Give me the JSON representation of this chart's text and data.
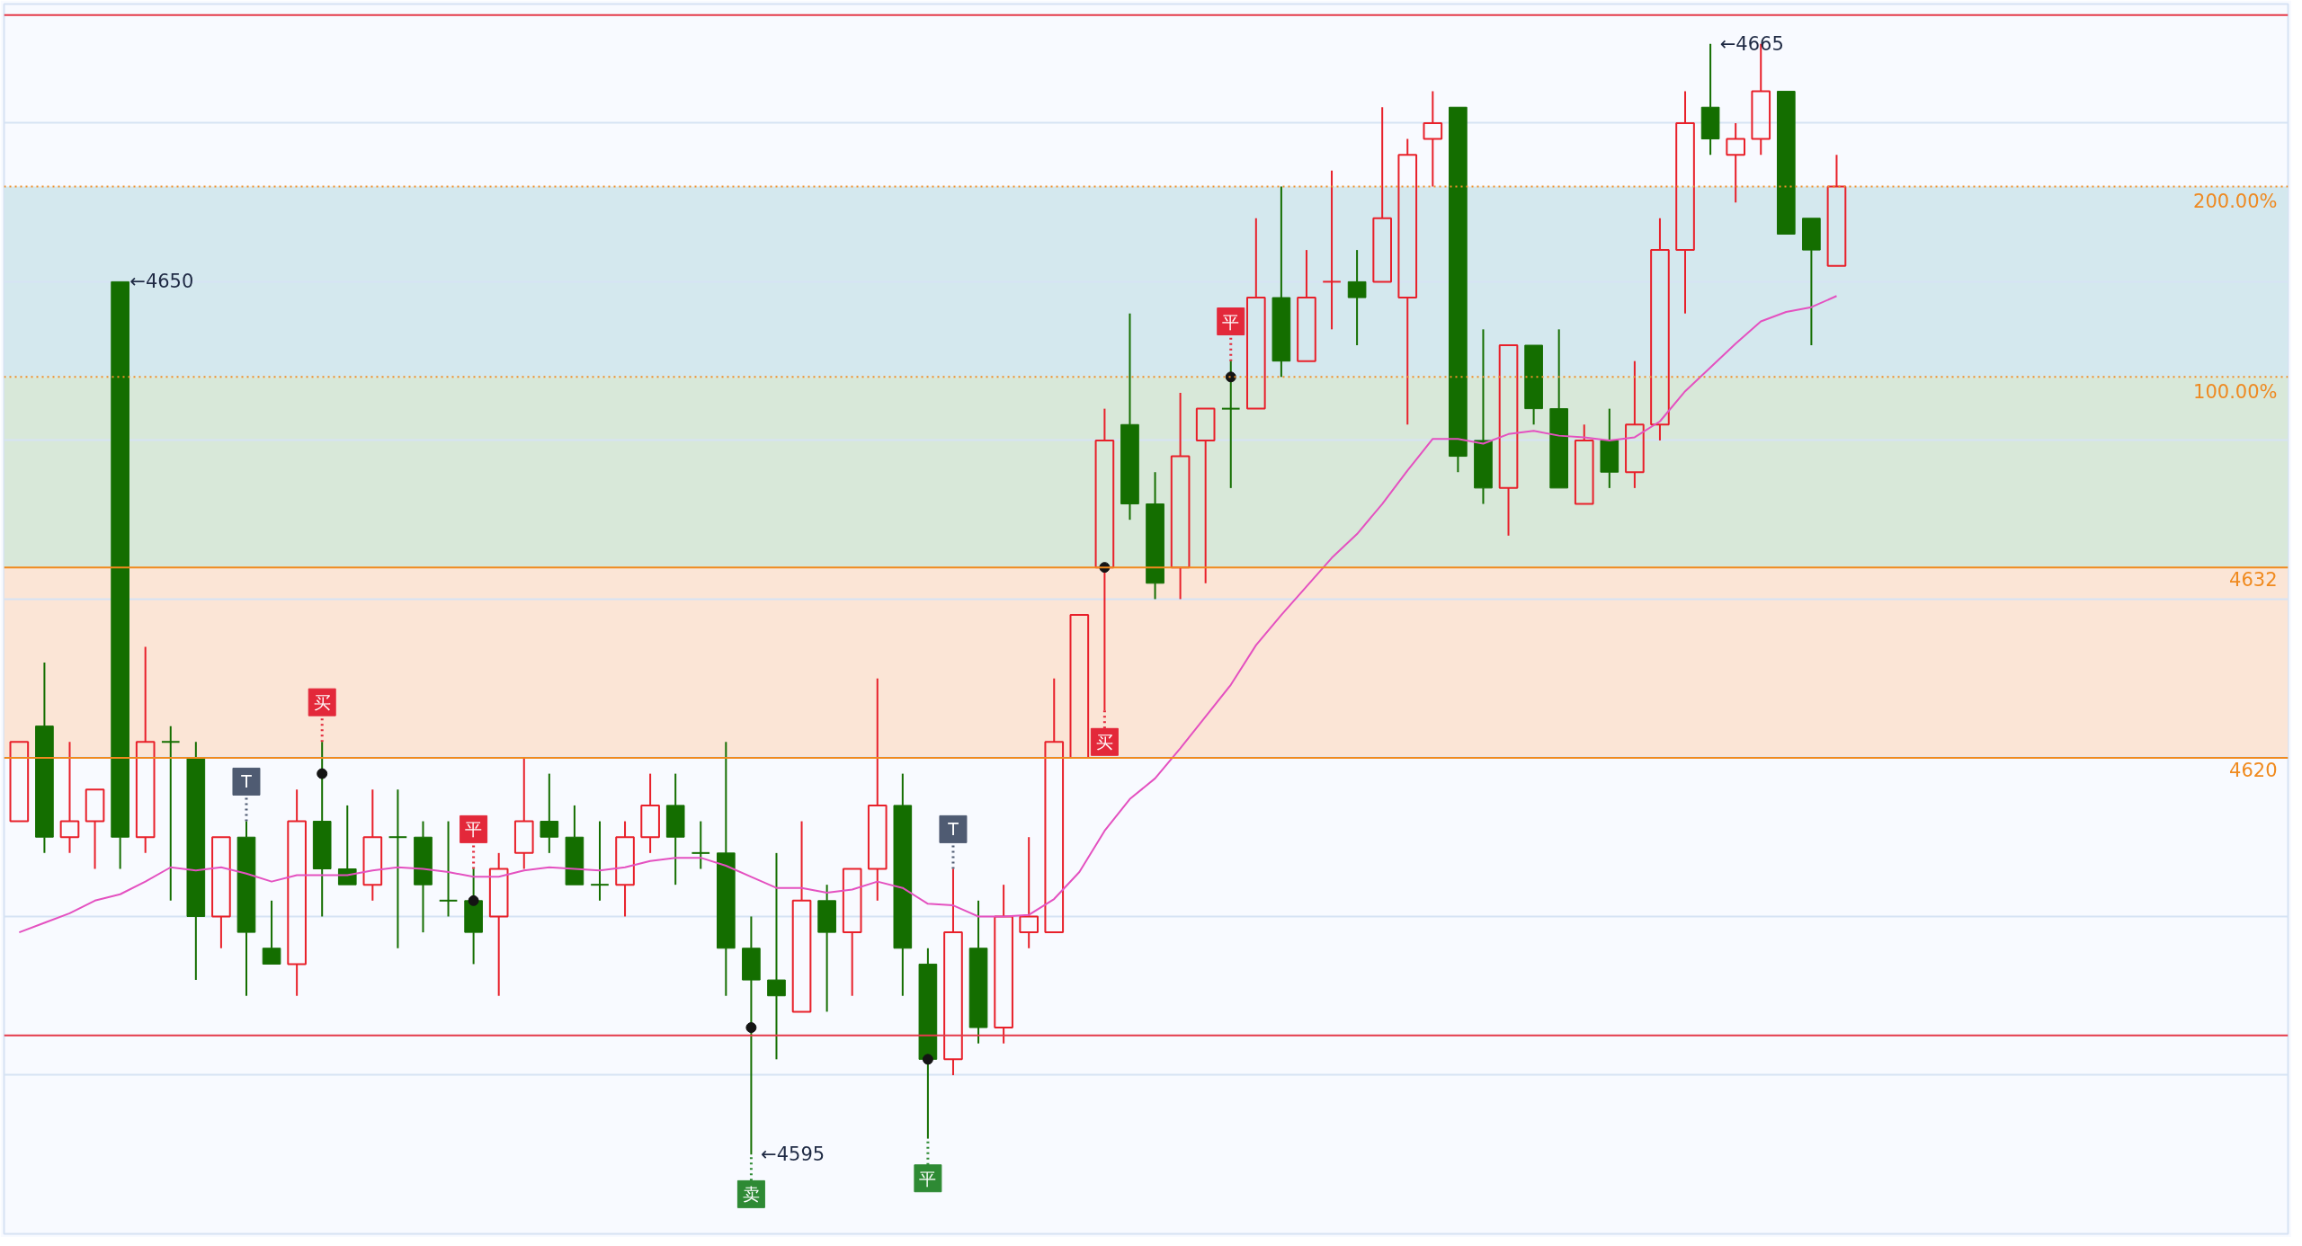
{
  "chart_data": {
    "type": "candlestick",
    "categories": [
      null,
      null,
      null,
      null,
      null,
      null,
      null,
      null,
      null,
      null,
      null,
      null,
      null,
      null,
      null,
      null,
      null,
      null,
      null,
      null,
      null,
      null,
      null,
      null,
      null,
      null,
      null,
      null,
      null,
      null,
      null,
      null,
      null,
      null,
      null,
      null,
      null,
      null,
      null,
      null,
      null,
      null,
      null,
      null,
      null,
      null,
      null,
      null,
      null,
      null,
      null,
      null,
      null,
      null,
      null,
      null,
      null,
      null,
      null,
      null,
      null,
      null,
      null,
      null,
      null,
      null,
      null,
      null,
      null,
      null,
      null,
      null,
      null
    ],
    "ohlc": [
      [
        4616,
        4621,
        4616,
        4621
      ],
      [
        4622,
        4626,
        4614,
        4615
      ],
      [
        4615,
        4621,
        4614,
        4616
      ],
      [
        4616,
        4618,
        4613,
        4618
      ],
      [
        4650,
        4650,
        4613,
        4615
      ],
      [
        4615,
        4627,
        4614,
        4621
      ],
      [
        4621,
        4622,
        4611,
        4621
      ],
      [
        4620,
        4621,
        4606,
        4610
      ],
      [
        4610,
        4615,
        4608,
        4615
      ],
      [
        4615,
        4616,
        4605,
        4609
      ],
      [
        4608,
        4611,
        4607,
        4607
      ],
      [
        4607,
        4618,
        4605,
        4616
      ],
      [
        4616,
        4621,
        4610,
        4613
      ],
      [
        4613,
        4617,
        4612,
        4612
      ],
      [
        4612,
        4618,
        4611,
        4615
      ],
      [
        4615,
        4618,
        4608,
        4615
      ],
      [
        4615,
        4616,
        4609,
        4612
      ],
      [
        4611,
        4616,
        4610,
        4611
      ],
      [
        4611,
        4613,
        4607,
        4609
      ],
      [
        4610,
        4614,
        4605,
        4613
      ],
      [
        4614,
        4620,
        4613,
        4616
      ],
      [
        4616,
        4619,
        4614,
        4615
      ],
      [
        4615,
        4617,
        4612,
        4612
      ],
      [
        4612,
        4616,
        4611,
        4612
      ],
      [
        4612,
        4616,
        4610,
        4615
      ],
      [
        4615,
        4619,
        4614,
        4617
      ],
      [
        4617,
        4619,
        4612,
        4615
      ],
      [
        4614,
        4616,
        4613,
        4614
      ],
      [
        4614,
        4621,
        4605,
        4608
      ],
      [
        4608,
        4610,
        4595,
        4606
      ],
      [
        4606,
        4614,
        4601,
        4605
      ],
      [
        4604,
        4616,
        4604,
        4611
      ],
      [
        4611,
        4612,
        4604,
        4609
      ],
      [
        4609,
        4613,
        4605,
        4613
      ],
      [
        4613,
        4625,
        4611,
        4617
      ],
      [
        4617,
        4619,
        4605,
        4608
      ],
      [
        4607,
        4608,
        4596,
        4601
      ],
      [
        4601,
        4613,
        4600,
        4609
      ],
      [
        4608,
        4611,
        4602,
        4603
      ],
      [
        4603,
        4612,
        4602,
        4610
      ],
      [
        4609,
        4615,
        4608,
        4610
      ],
      [
        4609,
        4625,
        4609,
        4621
      ],
      [
        4620,
        4629,
        4620,
        4629
      ],
      [
        4632,
        4642,
        4623,
        4640
      ],
      [
        4641,
        4648,
        4635,
        4636
      ],
      [
        4636,
        4638,
        4630,
        4631
      ],
      [
        4632,
        4643,
        4630,
        4639
      ],
      [
        4640,
        4642,
        4631,
        4642
      ],
      [
        4642,
        4645,
        4637,
        4642
      ],
      [
        4642,
        4654,
        4642,
        4649
      ],
      [
        4649,
        4656,
        4644,
        4645
      ],
      [
        4645,
        4652,
        4645,
        4649
      ],
      [
        4650,
        4657,
        4647,
        4650
      ],
      [
        4650,
        4652,
        4646,
        4649
      ],
      [
        4650,
        4661,
        4650,
        4654
      ],
      [
        4649,
        4659,
        4641,
        4658
      ],
      [
        4659,
        4662,
        4656,
        4660
      ],
      [
        4661,
        4661,
        4638,
        4639
      ],
      [
        4640,
        4647,
        4636,
        4637
      ],
      [
        4637,
        4646,
        4634,
        4646
      ],
      [
        4646,
        4646,
        4641,
        4642
      ],
      [
        4642,
        4647,
        4637,
        4637
      ],
      [
        4636,
        4641,
        4636,
        4640
      ],
      [
        4640,
        4642,
        4637,
        4638
      ],
      [
        4638,
        4645,
        4637,
        4641
      ],
      [
        4641,
        4654,
        4640,
        4652
      ],
      [
        4652,
        4662,
        4648,
        4660
      ],
      [
        4661,
        4665,
        4658,
        4659
      ],
      [
        4658,
        4660,
        4655,
        4659
      ],
      [
        4659,
        4665,
        4658,
        4662
      ],
      [
        4662,
        4662,
        4653,
        4653
      ],
      [
        4654,
        4654,
        4646,
        4652
      ],
      [
        4651,
        4658,
        4651,
        4656
      ]
    ],
    "colors": [
      "#e8202a",
      "#146e00",
      "#e8202a",
      "#e8202a",
      "#146e00",
      "#e8202a",
      "#146e00",
      "#146e00",
      "#e8202a",
      "#146e00",
      "#146e00",
      "#e8202a",
      "#146e00",
      "#146e00",
      "#e8202a",
      "#146e00",
      "#146e00",
      "#146e00",
      "#146e00",
      "#e8202a",
      "#e8202a",
      "#146e00",
      "#146e00",
      "#146e00",
      "#e8202a",
      "#e8202a",
      "#146e00",
      "#146e00",
      "#146e00",
      "#146e00",
      "#146e00",
      "#e8202a",
      "#146e00",
      "#e8202a",
      "#e8202a",
      "#146e00",
      "#146e00",
      "#e8202a",
      "#146e00",
      "#e8202a",
      "#e8202a",
      "#e8202a",
      "#e8202a",
      "#e8202a",
      "#146e00",
      "#146e00",
      "#e8202a",
      "#e8202a",
      "#146e00",
      "#e8202a",
      "#146e00",
      "#e8202a",
      "#e8202a",
      "#146e00",
      "#e8202a",
      "#e8202a",
      "#e8202a",
      "#146e00",
      "#146e00",
      "#e8202a",
      "#146e00",
      "#146e00",
      "#e8202a",
      "#146e00",
      "#e8202a",
      "#e8202a",
      "#e8202a",
      "#146e00",
      "#e8202a",
      "#e8202a",
      "#146e00",
      "#146e00",
      "#e8202a"
    ],
    "value_labels": [
      null,
      null,
      null,
      null,
      "←4650",
      null,
      null,
      null,
      null,
      null,
      null,
      null,
      null,
      null,
      null,
      null,
      null,
      null,
      null,
      null,
      null,
      null,
      null,
      null,
      null,
      null,
      null,
      null,
      null,
      "←4595",
      null,
      null,
      null,
      null,
      null,
      null,
      null,
      null,
      null,
      null,
      null,
      null,
      null,
      null,
      null,
      null,
      null,
      null,
      null,
      null,
      null,
      null,
      null,
      null,
      null,
      null,
      null,
      null,
      null,
      null,
      null,
      null,
      null,
      null,
      null,
      null,
      null,
      "←4665",
      null,
      null,
      null,
      null,
      null
    ],
    "ylim": [
      4590,
      4667.5
    ],
    "yticks": [
      {
        "value": 4600,
        "label": null
      },
      {
        "value": 4610,
        "label": null
      },
      {
        "value": 4620,
        "label": null
      },
      {
        "value": 4630,
        "label": null
      },
      {
        "value": 4640,
        "label": null
      },
      {
        "value": 4650,
        "label": null
      },
      {
        "value": 4660,
        "label": null
      }
    ],
    "grid": "y",
    "tick_labels": false,
    "series": [
      {
        "type": "line",
        "color": "#e451c0",
        "values": [
          4609.0,
          4609.6,
          4610.2,
          4611.0,
          4611.4,
          4612.2,
          4613.1,
          4612.9,
          4613.1,
          4612.7,
          4612.2,
          4612.6,
          4612.6,
          4612.6,
          4612.9,
          4613.1,
          4613.0,
          4612.8,
          4612.5,
          4612.5,
          4612.9,
          4613.1,
          4613.0,
          4612.9,
          4613.1,
          4613.5,
          4613.7,
          4613.7,
          4613.2,
          4612.5,
          4611.8,
          4611.8,
          4611.5,
          4611.7,
          4612.2,
          4611.8,
          4610.8,
          4610.7,
          4610.0,
          4610.0,
          4610.1,
          4611.1,
          4612.8,
          4615.4,
          4617.4,
          4618.7,
          4620.6,
          4622.6,
          4624.6,
          4627.1,
          4629.0,
          4630.8,
          4632.6,
          4634.1,
          4636.0,
          4638.1,
          4640.1,
          4640.1,
          4639.8,
          4640.4,
          4640.6,
          4640.3,
          4640.2,
          4640.0,
          4640.2,
          4641.2,
          4643.1,
          4644.6,
          4646.1,
          4647.5,
          4648.1,
          4648.4,
          4649.1
        ]
      },
      {
        "type": "scatter",
        "marker": "circle",
        "color": "#141414",
        "values": [
          null,
          null,
          null,
          null,
          null,
          null,
          null,
          null,
          null,
          null,
          null,
          null,
          4619,
          null,
          null,
          null,
          null,
          null,
          4611,
          null,
          null,
          null,
          null,
          null,
          null,
          null,
          null,
          null,
          null,
          4603,
          null,
          null,
          null,
          null,
          null,
          null,
          4601,
          null,
          null,
          null,
          null,
          null,
          null,
          4632,
          null,
          null,
          null,
          null,
          4644,
          null,
          null,
          null,
          null,
          null,
          null,
          null,
          null,
          null,
          null,
          null,
          null,
          null,
          null,
          null,
          null,
          null,
          null,
          null,
          null,
          null,
          null,
          null,
          null
        ]
      },
      {
        "type": "scatter",
        "marker": "square",
        "color": "#e3283a",
        "values": [
          null,
          null,
          null,
          null,
          null,
          null,
          null,
          null,
          null,
          null,
          null,
          null,
          4623.5,
          null,
          null,
          null,
          null,
          null,
          4615.5,
          null,
          null,
          null,
          null,
          null,
          null,
          null,
          null,
          null,
          null,
          null,
          null,
          null,
          null,
          null,
          null,
          null,
          null,
          null,
          null,
          null,
          null,
          null,
          null,
          4621,
          null,
          null,
          null,
          null,
          4647.5,
          null,
          null,
          null,
          null,
          null,
          null,
          null,
          null,
          null,
          null,
          null,
          null,
          null,
          null,
          null,
          null,
          null,
          null,
          null,
          null,
          null,
          null,
          null,
          null
        ],
        "value_labels": [
          null,
          null,
          null,
          null,
          null,
          null,
          null,
          null,
          null,
          null,
          null,
          null,
          "买",
          null,
          null,
          null,
          null,
          null,
          "平",
          null,
          null,
          null,
          null,
          null,
          null,
          null,
          null,
          null,
          null,
          null,
          null,
          null,
          null,
          null,
          null,
          null,
          null,
          null,
          null,
          null,
          null,
          null,
          null,
          "买",
          null,
          null,
          null,
          null,
          "平",
          null,
          null,
          null,
          null,
          null,
          null,
          null,
          null,
          null,
          null,
          null,
          null,
          null,
          null,
          null,
          null,
          null,
          null,
          null,
          null,
          null,
          null,
          null,
          null
        ]
      },
      {
        "type": "scatter",
        "marker": "square",
        "color": "#2e8a34",
        "values": [
          null,
          null,
          null,
          null,
          null,
          null,
          null,
          null,
          null,
          null,
          null,
          null,
          null,
          null,
          null,
          null,
          null,
          null,
          null,
          null,
          null,
          null,
          null,
          null,
          null,
          null,
          null,
          null,
          null,
          4592.5,
          null,
          null,
          null,
          null,
          null,
          null,
          4593.5,
          null,
          null,
          null,
          null,
          null,
          null,
          null,
          null,
          null,
          null,
          null,
          null,
          null,
          null,
          null,
          null,
          null,
          null,
          null,
          null,
          null,
          null,
          null,
          null,
          null,
          null,
          null,
          null,
          null,
          null,
          null,
          null,
          null,
          null,
          null,
          null
        ],
        "value_labels": [
          null,
          null,
          null,
          null,
          null,
          null,
          null,
          null,
          null,
          null,
          null,
          null,
          null,
          null,
          null,
          null,
          null,
          null,
          null,
          null,
          null,
          null,
          null,
          null,
          null,
          null,
          null,
          null,
          null,
          "卖",
          null,
          null,
          null,
          null,
          null,
          null,
          "平",
          null,
          null,
          null,
          null,
          null,
          null,
          null,
          null,
          null,
          null,
          null,
          null,
          null,
          null,
          null,
          null,
          null,
          null,
          null,
          null,
          null,
          null,
          null,
          null,
          null,
          null,
          null,
          null,
          null,
          null,
          null,
          null,
          null,
          null,
          null,
          null
        ]
      },
      {
        "type": "scatter",
        "marker": "square",
        "color": "#4f5b72",
        "values": [
          null,
          null,
          null,
          null,
          null,
          null,
          null,
          null,
          null,
          4618.5,
          null,
          null,
          null,
          null,
          null,
          null,
          null,
          null,
          null,
          null,
          null,
          null,
          null,
          null,
          null,
          null,
          null,
          null,
          null,
          null,
          null,
          null,
          null,
          null,
          null,
          null,
          null,
          4615.5,
          null,
          null,
          null,
          null,
          null,
          null,
          null,
          null,
          null,
          null,
          null,
          null,
          null,
          null,
          null,
          null,
          null,
          null,
          null,
          null,
          null,
          null,
          null,
          null,
          null,
          null,
          null,
          null,
          null,
          null,
          null,
          null,
          null,
          null,
          null
        ],
        "value_labels": [
          null,
          null,
          null,
          null,
          null,
          null,
          null,
          null,
          null,
          "T",
          null,
          null,
          null,
          null,
          null,
          null,
          null,
          null,
          null,
          null,
          null,
          null,
          null,
          null,
          null,
          null,
          null,
          null,
          null,
          null,
          null,
          null,
          null,
          null,
          null,
          null,
          null,
          "T",
          null,
          null,
          null,
          null,
          null,
          null,
          null,
          null,
          null,
          null,
          null,
          null,
          null,
          null,
          null,
          null,
          null,
          null,
          null,
          null,
          null,
          null,
          null,
          null,
          null,
          null,
          null,
          null,
          null,
          null,
          null,
          null,
          null,
          null,
          null
        ]
      }
    ],
    "ref_lines": [
      {
        "axis": "y",
        "value": 4666.8,
        "color": "#e43a4a"
      },
      {
        "axis": "y",
        "value": 4602.5,
        "color": "#e43a4a"
      },
      {
        "axis": "y",
        "value": 4656,
        "color": "#f0902a",
        "line_style": "dotted"
      },
      {
        "axis": "y",
        "value": 4644,
        "color": "#f0902a",
        "line_style": "dotted"
      },
      {
        "axis": "y",
        "value": 4632,
        "label": "4632",
        "color": "#f08a1e"
      },
      {
        "axis": "y",
        "value": 4620,
        "label": "4620",
        "color": "#f08a1e"
      }
    ],
    "bands": [
      {
        "axis": "y",
        "from": 4620,
        "to": 4632,
        "color": "#fbe5d6"
      },
      {
        "axis": "y",
        "from": 4632,
        "to": 4644,
        "color": "#d8e8d9",
        "label": "100.00%"
      },
      {
        "axis": "y",
        "from": 4644,
        "to": 4656,
        "color": "#d4e8ee",
        "label": "200.00%"
      }
    ]
  }
}
